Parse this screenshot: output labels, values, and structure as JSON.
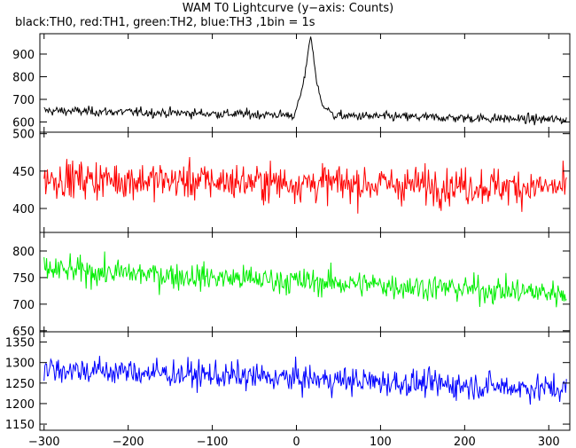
{
  "title": "WAM T0 Lightcurve (y−axis: Counts)",
  "subtitle": "black:TH0, red:TH1, green:TH2, blue:TH3 ,1bin = 1s",
  "chart_data": {
    "type": "line",
    "title": "WAM T0 Lightcurve (y−axis: Counts)",
    "subtitle": "black:TH0, red:TH1, green:TH2, blue:TH3 ,1bin = 1s",
    "bin_seconds": 1,
    "xlabel": "",
    "xlim": [
      -305,
      325
    ],
    "x_ticks": [
      -300,
      -200,
      -100,
      0,
      100,
      200,
      300
    ],
    "x_tick_labels": [
      "−300",
      "−200",
      "−100",
      "0",
      "100",
      "200",
      "300"
    ],
    "series": [
      {
        "name": "TH0",
        "color": "#000000",
        "ylim": [
          555,
          990
        ],
        "y_ticks": [
          600,
          700,
          800,
          900
        ],
        "baseline_start": 650,
        "baseline_end": 610,
        "noise_amplitude": 25,
        "burst": [
          [
            0,
            660
          ],
          [
            5,
            720
          ],
          [
            10,
            800
          ],
          [
            14,
            920
          ],
          [
            17,
            980
          ],
          [
            20,
            900
          ],
          [
            24,
            780
          ],
          [
            30,
            680
          ],
          [
            40,
            650
          ]
        ]
      },
      {
        "name": "TH1",
        "color": "#ff0000",
        "ylim": [
          368,
          502
        ],
        "y_ticks": [
          400,
          450,
          500
        ],
        "baseline_start": 440,
        "baseline_end": 428,
        "noise_amplitude": 30
      },
      {
        "name": "TH2",
        "color": "#00ee00",
        "ylim": [
          648,
          835
        ],
        "y_ticks": [
          650,
          700,
          750,
          800
        ],
        "baseline_start": 765,
        "baseline_end": 720,
        "noise_amplitude": 30
      },
      {
        "name": "TH3",
        "color": "#0000ff",
        "ylim": [
          1135,
          1375
        ],
        "y_ticks": [
          1150,
          1200,
          1250,
          1300,
          1350
        ],
        "baseline_start": 1285,
        "baseline_end": 1235,
        "noise_amplitude": 40
      }
    ]
  }
}
